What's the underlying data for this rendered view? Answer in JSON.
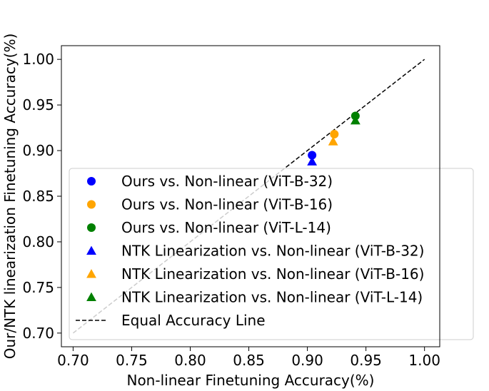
{
  "chart_data": {
    "type": "scatter",
    "title": "",
    "xlabel": "Non-linear Finetuning Accuracy(%)",
    "ylabel": "Our/NTK linearization Finetuning Accuracy(%)",
    "xlim": [
      0.69,
      1.013
    ],
    "ylim": [
      0.685,
      1.015
    ],
    "xticks": [
      "0.70",
      "0.75",
      "0.80",
      "0.85",
      "0.90",
      "0.95",
      "1.00"
    ],
    "yticks": [
      "0.70",
      "0.75",
      "0.80",
      "0.85",
      "0.90",
      "0.95",
      "1.00"
    ],
    "grid": false,
    "legend_position": "lower-right",
    "series": [
      {
        "name": "Ours vs. Non-linear (ViT-B-32)",
        "marker": "circle",
        "color": "#0000ff",
        "points": [
          [
            0.904,
            0.895
          ]
        ]
      },
      {
        "name": "Ours vs. Non-linear (ViT-B-16)",
        "marker": "circle",
        "color": "#ffa500",
        "points": [
          [
            0.923,
            0.918
          ]
        ]
      },
      {
        "name": "Ours vs. Non-linear (ViT-L-14)",
        "marker": "circle",
        "color": "#008000",
        "points": [
          [
            0.941,
            0.938
          ]
        ]
      },
      {
        "name": "NTK Linearization vs. Non-linear (ViT-B-32)",
        "marker": "triangle",
        "color": "#0000ff",
        "points": [
          [
            0.904,
            0.888
          ]
        ]
      },
      {
        "name": "NTK Linearization vs. Non-linear (ViT-B-16)",
        "marker": "triangle",
        "color": "#ffa500",
        "points": [
          [
            0.922,
            0.91
          ]
        ]
      },
      {
        "name": "NTK Linearization vs. Non-linear (ViT-L-14)",
        "marker": "triangle",
        "color": "#008000",
        "points": [
          [
            0.941,
            0.933
          ]
        ]
      }
    ],
    "reference_line": {
      "name": "Equal Accuracy Line",
      "style": "dashed",
      "color": "#000000",
      "points": [
        [
          0.7,
          0.7
        ],
        [
          1.0,
          1.0
        ]
      ]
    }
  }
}
